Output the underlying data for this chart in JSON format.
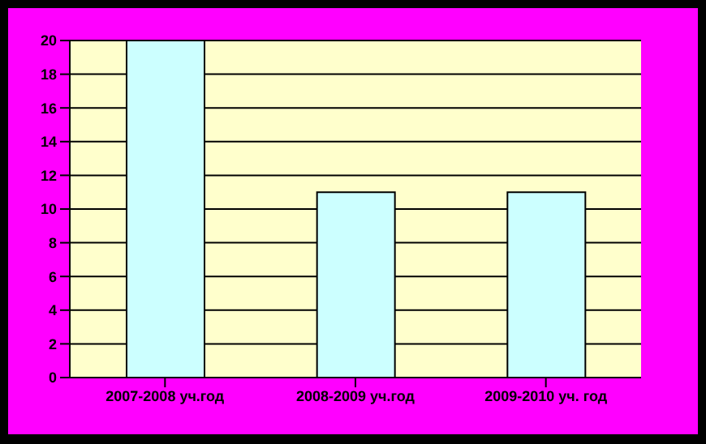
{
  "chart_data": {
    "type": "bar",
    "categories": [
      "2007-2008 уч.год",
      "2008-2009 уч.год",
      "2009-2010 уч. год"
    ],
    "values": [
      20,
      11,
      11
    ],
    "color": "#ccffff",
    "ylim": [
      0,
      20
    ],
    "yticks": [
      0,
      2,
      4,
      6,
      8,
      10,
      12,
      14,
      16,
      18,
      20
    ],
    "grid": "y"
  }
}
